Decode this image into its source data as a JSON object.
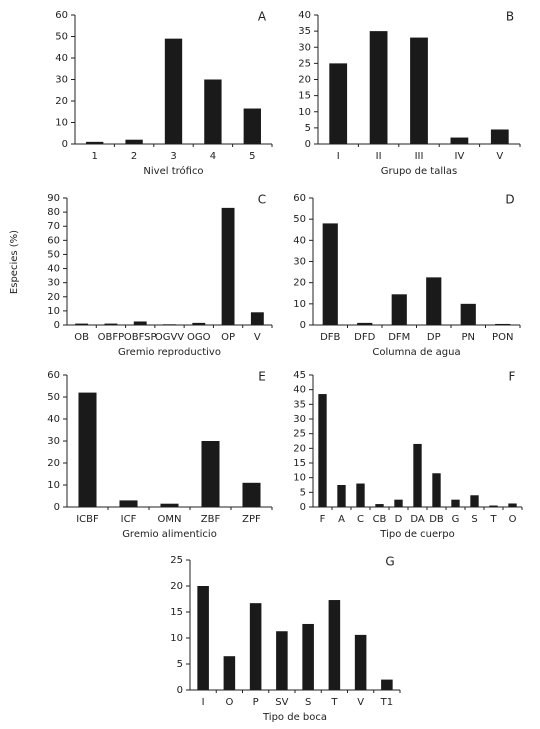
{
  "ylabel": "Especies (%)",
  "chart_data": [
    {
      "type": "bar",
      "label": "A",
      "xlabel": "Nivel trófico",
      "categories": [
        "1",
        "2",
        "3",
        "4",
        "5"
      ],
      "values": [
        1,
        2,
        49,
        30,
        16.5
      ],
      "color": "#1a1a1a",
      "ylim": [
        0,
        60
      ],
      "yticks": [
        0,
        10,
        20,
        30,
        40,
        50,
        60
      ]
    },
    {
      "type": "bar",
      "label": "B",
      "xlabel": "Grupo de tallas",
      "categories": [
        "I",
        "II",
        "III",
        "IV",
        "V"
      ],
      "values": [
        25,
        35,
        33,
        2,
        4.5
      ],
      "color": "#1a1a1a",
      "ylim": [
        0,
        40
      ],
      "yticks": [
        0,
        5,
        10,
        15,
        20,
        25,
        30,
        35,
        40
      ]
    },
    {
      "type": "bar",
      "label": "C",
      "xlabel": "Gremio reproductivo",
      "categories": [
        "OB",
        "OBFP",
        "OBFSP",
        "OGVV",
        "OGO",
        "OP",
        "V"
      ],
      "values": [
        1,
        1,
        2.5,
        0.5,
        1.5,
        83,
        9
      ],
      "color": "#1a1a1a",
      "ylim": [
        0,
        90
      ],
      "yticks": [
        0,
        10,
        20,
        30,
        40,
        50,
        60,
        70,
        80,
        90
      ]
    },
    {
      "type": "bar",
      "label": "D",
      "xlabel": "Columna de agua",
      "categories": [
        "DFB",
        "DFD",
        "DFM",
        "DP",
        "PN",
        "PON"
      ],
      "values": [
        48,
        1,
        14.5,
        22.5,
        10,
        0.5
      ],
      "color": "#1a1a1a",
      "ylim": [
        0,
        60
      ],
      "yticks": [
        0,
        10,
        20,
        30,
        40,
        50,
        60
      ]
    },
    {
      "type": "bar",
      "label": "E",
      "xlabel": "Gremio alimenticio",
      "categories": [
        "ICBF",
        "ICF",
        "OMN",
        "ZBF",
        "ZPF"
      ],
      "values": [
        52,
        3,
        1.5,
        30,
        11
      ],
      "color": "#1a1a1a",
      "ylim": [
        0,
        60
      ],
      "yticks": [
        0,
        10,
        20,
        30,
        40,
        50,
        60
      ]
    },
    {
      "type": "bar",
      "label": "F",
      "xlabel": "Tipo de cuerpo",
      "categories": [
        "F",
        "A",
        "C",
        "CB",
        "D",
        "DA",
        "DB",
        "G",
        "S",
        "T",
        "O"
      ],
      "values": [
        38.5,
        7.5,
        8,
        1,
        2.5,
        21.5,
        11.5,
        2.5,
        4,
        0.5,
        1.2
      ],
      "color": "#1a1a1a",
      "ylim": [
        0,
        45
      ],
      "yticks": [
        0,
        5,
        10,
        15,
        20,
        25,
        30,
        35,
        40,
        45
      ]
    },
    {
      "type": "bar",
      "label": "G",
      "xlabel": "Tipo de boca",
      "categories": [
        "I",
        "O",
        "P",
        "SV",
        "S",
        "T",
        "V",
        "T1"
      ],
      "values": [
        20,
        6.5,
        16.7,
        11.3,
        12.7,
        17.3,
        10.6,
        2
      ],
      "color": "#1a1a1a",
      "ylim": [
        0,
        25
      ],
      "yticks": [
        0,
        5,
        10,
        15,
        20,
        25
      ]
    }
  ]
}
